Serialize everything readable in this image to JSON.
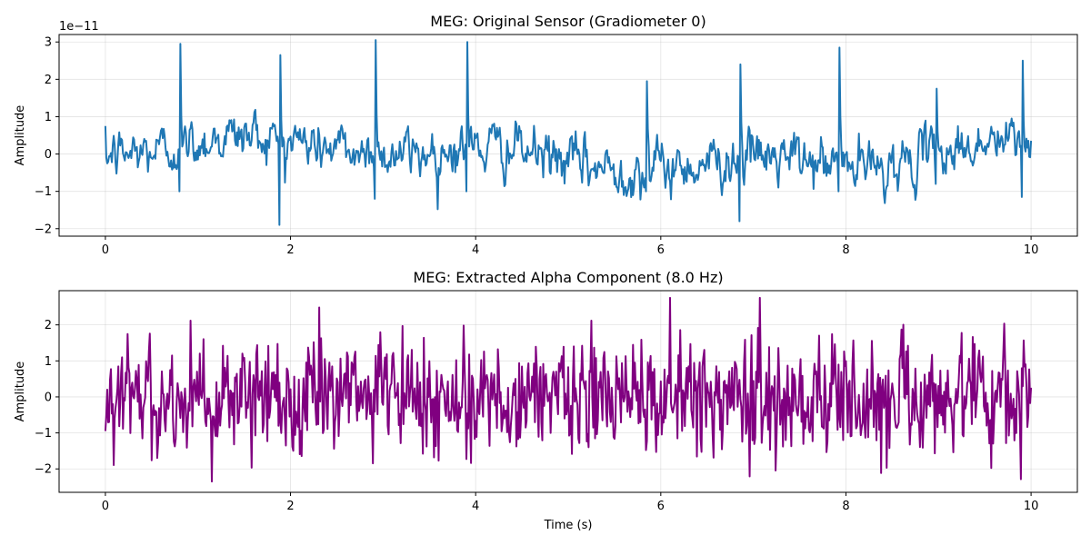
{
  "chart_data": [
    {
      "type": "line",
      "title": "MEG: Original Sensor (Gradiometer 0)",
      "xlabel": "",
      "ylabel": "Amplitude",
      "offset_text": "1e−11",
      "xlim": [
        -0.5,
        10.5
      ],
      "ylim": [
        -2.2,
        3.2
      ],
      "xticks": [
        0,
        2,
        4,
        6,
        8,
        10
      ],
      "yticks": [
        -2,
        -1,
        0,
        1,
        2,
        3
      ],
      "xtick_labels": [
        "0",
        "2",
        "4",
        "6",
        "8",
        "10"
      ],
      "ytick_labels": [
        "−2",
        "−1",
        "0",
        "1",
        "2",
        "3"
      ],
      "grid": true,
      "color": "#1f77b4",
      "series": [
        {
          "sampling": "approx 0.01 s, reconstructed",
          "spikes": [
            {
              "t": 0.81,
              "y": 2.95,
              "pre": -1.0
            },
            {
              "t": 1.89,
              "y": 2.65,
              "pre": -1.9
            },
            {
              "t": 2.92,
              "y": 3.05,
              "pre": -1.2
            },
            {
              "t": 3.91,
              "y": 3.0,
              "pre": -1.0
            },
            {
              "t": 5.85,
              "y": 1.95,
              "pre": -1.0
            },
            {
              "t": 6.86,
              "y": 2.4,
              "pre": -1.8
            },
            {
              "t": 7.93,
              "y": 2.85,
              "pre": -1.0
            },
            {
              "t": 8.98,
              "y": 1.75,
              "pre": -0.8
            },
            {
              "t": 9.91,
              "y": 2.5,
              "pre": -1.15
            }
          ],
          "x_range": [
            0,
            10
          ],
          "y_range_observed": [
            -1.9,
            3.05
          ]
        }
      ]
    },
    {
      "type": "line",
      "title": "MEG: Extracted Alpha Component (8.0 Hz)",
      "xlabel": "Time (s)",
      "ylabel": "Amplitude",
      "xlim": [
        -0.5,
        10.5
      ],
      "ylim": [
        -2.65,
        2.95
      ],
      "xticks": [
        0,
        2,
        4,
        6,
        8,
        10
      ],
      "yticks": [
        -2,
        -1,
        0,
        1,
        2
      ],
      "xtick_labels": [
        "0",
        "2",
        "4",
        "6",
        "8",
        "10"
      ],
      "ytick_labels": [
        "−2",
        "−1",
        "0",
        "1",
        "2"
      ],
      "grid": true,
      "color": "#800080",
      "series": [
        {
          "x_range": [
            0,
            10
          ],
          "y_range_observed": [
            -2.35,
            2.75
          ]
        }
      ]
    }
  ]
}
